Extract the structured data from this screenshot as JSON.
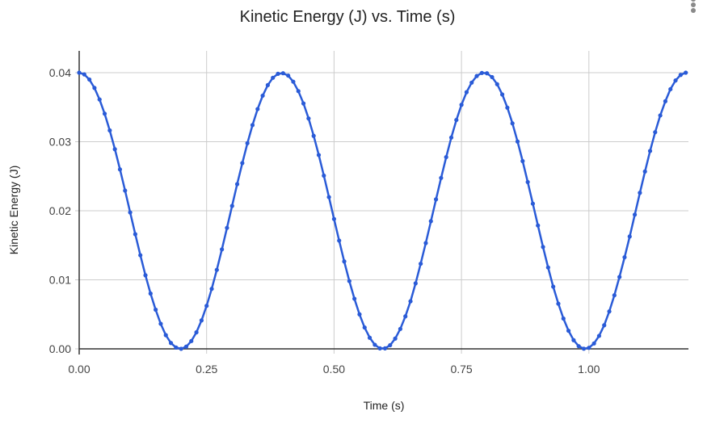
{
  "header": {
    "title": "Kinetic Energy (J) vs. Time (s)",
    "menu_icon": "more-vert-icon"
  },
  "axes": {
    "xlabel": "Time (s)",
    "ylabel": "Kinetic Energy (J)",
    "xticks": [
      "0.00",
      "0.25",
      "0.50",
      "0.75",
      "1.00"
    ],
    "yticks": [
      "0.00",
      "0.01",
      "0.02",
      "0.03",
      "0.04"
    ]
  },
  "colors": {
    "series": "#2a5bd7",
    "grid": "#cccccc",
    "axis": "#333333"
  },
  "chart_data": {
    "type": "line",
    "title": "Kinetic Energy (J) vs. Time (s)",
    "xlabel": "Time (s)",
    "ylabel": "Kinetic Energy (J)",
    "xlim": [
      0,
      1.2
    ],
    "ylim": [
      0,
      0.043
    ],
    "grid": true,
    "legend": "none",
    "x_ticks": [
      0.0,
      0.25,
      0.5,
      0.75,
      1.0
    ],
    "y_ticks": [
      0.0,
      0.01,
      0.02,
      0.03,
      0.04
    ],
    "series": [
      {
        "name": "Kinetic Energy (J)",
        "x": [
          0.0,
          0.01,
          0.02,
          0.03,
          0.04,
          0.05,
          0.06,
          0.07,
          0.08,
          0.09,
          0.1,
          0.11,
          0.12,
          0.13,
          0.14,
          0.15,
          0.16,
          0.17,
          0.18,
          0.19,
          0.2,
          0.21,
          0.22,
          0.23,
          0.24,
          0.25,
          0.26,
          0.27,
          0.28,
          0.29,
          0.3,
          0.31,
          0.32,
          0.33,
          0.34,
          0.35,
          0.36,
          0.37,
          0.38,
          0.39,
          0.4,
          0.41,
          0.42,
          0.43,
          0.44,
          0.45,
          0.46,
          0.47,
          0.48,
          0.49,
          0.5,
          0.51,
          0.52,
          0.53,
          0.54,
          0.55,
          0.56,
          0.57,
          0.58,
          0.59,
          0.6,
          0.61,
          0.62,
          0.63,
          0.64,
          0.65,
          0.66,
          0.67,
          0.68,
          0.69,
          0.7,
          0.71,
          0.72,
          0.73,
          0.74,
          0.75,
          0.76,
          0.77,
          0.78,
          0.79,
          0.8,
          0.81,
          0.82,
          0.83,
          0.84,
          0.85,
          0.86,
          0.87,
          0.88,
          0.89,
          0.9,
          0.91,
          0.92,
          0.93,
          0.94,
          0.95,
          0.96,
          0.97,
          0.98,
          0.99,
          1.0,
          1.01,
          1.02,
          1.03,
          1.04,
          1.05,
          1.06,
          1.07,
          1.08,
          1.09,
          1.1,
          1.11,
          1.12,
          1.13,
          1.14,
          1.15,
          1.16,
          1.17,
          1.18,
          1.19
        ],
        "values": [
          0.04,
          0.03975,
          0.03901,
          0.03779,
          0.03612,
          0.03406,
          0.03164,
          0.02892,
          0.02599,
          0.02292,
          0.01976,
          0.01661,
          0.01356,
          0.01066,
          0.00801,
          0.00567,
          0.00363,
          0.00199,
          0.00085,
          0.00019,
          1e-05,
          0.00032,
          0.00113,
          0.0024,
          0.00412,
          0.00623,
          0.00869,
          0.01144,
          0.01441,
          0.01752,
          0.0207,
          0.02386,
          0.02691,
          0.02979,
          0.03241,
          0.03473,
          0.03667,
          0.0382,
          0.03926,
          0.03984,
          0.03992,
          0.03958,
          0.03869,
          0.03733,
          0.03554,
          0.03337,
          0.03085,
          0.02808,
          0.02509,
          0.02198,
          0.01881,
          0.01568,
          0.01266,
          0.00982,
          0.00726,
          0.005,
          0.00309,
          0.00161,
          0.00059,
          7e-05,
          7e-05,
          0.00053,
          0.00149,
          0.00289,
          0.00471,
          0.00689,
          0.00949,
          0.01233,
          0.01532,
          0.01849,
          0.02165,
          0.02476,
          0.02777,
          0.03061,
          0.03315,
          0.03535,
          0.03718,
          0.03856,
          0.03952,
          0.03996,
          0.03991,
          0.03936,
          0.03833,
          0.03684,
          0.03493,
          0.03265,
          0.03003,
          0.02719,
          0.02416,
          0.02103,
          0.01787,
          0.01476,
          0.01179,
          0.00901,
          0.00654,
          0.00439,
          0.00262,
          0.00126,
          0.00039,
          2e-05,
          0.00015,
          0.00078,
          0.00188,
          0.00342,
          0.00542,
          0.00776,
          0.01041,
          0.01327,
          0.01627,
          0.01944,
          0.0226,
          0.02569,
          0.02866,
          0.03138,
          0.03381,
          0.03586,
          0.03761,
          0.03887,
          0.03968,
          0.04
        ]
      }
    ]
  }
}
